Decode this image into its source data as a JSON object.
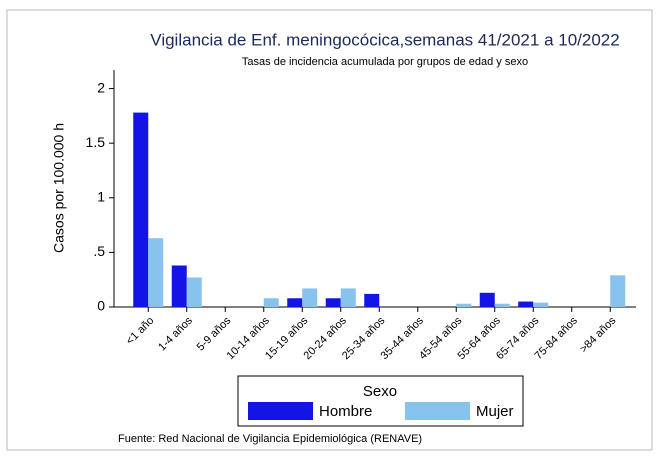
{
  "chart_data": {
    "type": "bar",
    "title": "Vigilancia de Enf. meningocócica,semanas 41/2021 a 10/2022",
    "subtitle": "Tasas de incidencia acumulada por grupos de edad y sexo",
    "y_label": "Casos por 100.000 h",
    "legend_title": "Sexo",
    "note": "Fuente: Red Nacional de Vigilancia Epidemiológica (RENAVE)",
    "categories": [
      "<1 año",
      "1-4 años",
      "5-9 años",
      "10-14 años",
      "15-19 años",
      "20-24 años",
      "25-34 años",
      "35-44 años",
      "45-54 años",
      "55-64 años",
      "65-74 años",
      "75-84 años",
      ">84 años"
    ],
    "series": [
      {
        "name": "Hombre",
        "color": "#1414e6",
        "values": [
          1.78,
          0.38,
          0,
          0,
          0.08,
          0.08,
          0.12,
          0,
          0,
          0.13,
          0.05,
          0,
          0
        ]
      },
      {
        "name": "Mujer",
        "color": "#87c3ec",
        "values": [
          0.63,
          0.27,
          0,
          0.08,
          0.17,
          0.17,
          0,
          0,
          0.03,
          0.03,
          0.04,
          0,
          0.29
        ]
      }
    ],
    "ylim": [
      0,
      2.17
    ],
    "yticks": [
      0,
      {
        "value": 0.5,
        "label": ".5"
      },
      1,
      1.5,
      2
    ]
  }
}
